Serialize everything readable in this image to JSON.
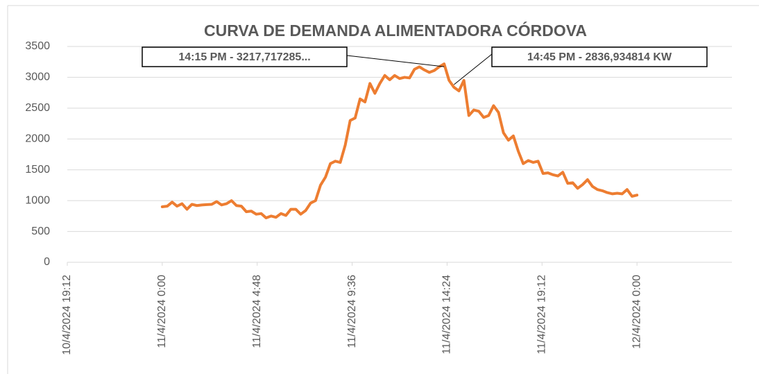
{
  "chart_data": {
    "type": "line",
    "title": "CURVA DE DEMANDA ALIMENTADORA CÓRDOVA",
    "x": [
      "11/4/2024 0:00",
      "11/4/2024 0:15",
      "11/4/2024 0:30",
      "11/4/2024 0:45",
      "11/4/2024 1:00",
      "11/4/2024 1:15",
      "11/4/2024 1:30",
      "11/4/2024 1:45",
      "11/4/2024 2:00",
      "11/4/2024 2:15",
      "11/4/2024 2:30",
      "11/4/2024 2:45",
      "11/4/2024 3:00",
      "11/4/2024 3:15",
      "11/4/2024 3:30",
      "11/4/2024 3:45",
      "11/4/2024 4:00",
      "11/4/2024 4:15",
      "11/4/2024 4:30",
      "11/4/2024 4:45",
      "11/4/2024 5:00",
      "11/4/2024 5:15",
      "11/4/2024 5:30",
      "11/4/2024 5:45",
      "11/4/2024 6:00",
      "11/4/2024 6:15",
      "11/4/2024 6:30",
      "11/4/2024 6:45",
      "11/4/2024 7:00",
      "11/4/2024 7:15",
      "11/4/2024 7:30",
      "11/4/2024 7:45",
      "11/4/2024 8:00",
      "11/4/2024 8:15",
      "11/4/2024 8:30",
      "11/4/2024 8:45",
      "11/4/2024 9:00",
      "11/4/2024 9:15",
      "11/4/2024 9:30",
      "11/4/2024 9:45",
      "11/4/2024 10:00",
      "11/4/2024 10:15",
      "11/4/2024 10:30",
      "11/4/2024 10:45",
      "11/4/2024 11:00",
      "11/4/2024 11:15",
      "11/4/2024 11:30",
      "11/4/2024 11:45",
      "11/4/2024 12:00",
      "11/4/2024 12:15",
      "11/4/2024 12:30",
      "11/4/2024 12:45",
      "11/4/2024 13:00",
      "11/4/2024 13:15",
      "11/4/2024 13:30",
      "11/4/2024 13:45",
      "11/4/2024 14:00",
      "11/4/2024 14:15",
      "11/4/2024 14:30",
      "11/4/2024 14:45",
      "11/4/2024 15:00",
      "11/4/2024 15:15",
      "11/4/2024 15:30",
      "11/4/2024 15:45",
      "11/4/2024 16:00",
      "11/4/2024 16:15",
      "11/4/2024 16:30",
      "11/4/2024 16:45",
      "11/4/2024 17:00",
      "11/4/2024 17:15",
      "11/4/2024 17:30",
      "11/4/2024 17:45",
      "11/4/2024 18:00",
      "11/4/2024 18:15",
      "11/4/2024 18:30",
      "11/4/2024 18:45",
      "11/4/2024 19:00",
      "11/4/2024 19:15",
      "11/4/2024 19:30",
      "11/4/2024 19:45",
      "11/4/2024 20:00",
      "11/4/2024 20:15",
      "11/4/2024 20:30",
      "11/4/2024 20:45",
      "11/4/2024 21:00",
      "11/4/2024 21:15",
      "11/4/2024 21:30",
      "11/4/2024 21:45",
      "11/4/2024 22:00",
      "11/4/2024 22:15",
      "11/4/2024 22:30",
      "11/4/2024 22:45",
      "11/4/2024 23:00",
      "11/4/2024 23:15",
      "11/4/2024 23:30",
      "11/4/2024 23:45",
      "12/4/2024 0:00"
    ],
    "values": [
      900,
      910,
      975,
      910,
      950,
      860,
      940,
      920,
      930,
      935,
      940,
      985,
      930,
      950,
      1000,
      920,
      910,
      820,
      830,
      780,
      790,
      720,
      750,
      730,
      790,
      760,
      860,
      860,
      780,
      840,
      960,
      1000,
      1250,
      1380,
      1600,
      1640,
      1620,
      1900,
      2300,
      2340,
      2650,
      2600,
      2900,
      2740,
      2900,
      3030,
      2960,
      3030,
      2980,
      3000,
      2990,
      3130,
      3170,
      3120,
      3080,
      3110,
      3170,
      3217.717285,
      2950,
      2836.934814,
      2780,
      2950,
      2380,
      2470,
      2450,
      2350,
      2380,
      2540,
      2430,
      2100,
      1980,
      2050,
      1800,
      1600,
      1650,
      1620,
      1640,
      1440,
      1450,
      1420,
      1400,
      1460,
      1280,
      1290,
      1200,
      1260,
      1340,
      1230,
      1180,
      1160,
      1130,
      1110,
      1120,
      1110,
      1180,
      1070,
      1090
    ],
    "value_labels": [
      null,
      null,
      null,
      null,
      null,
      null,
      null,
      null,
      null,
      null,
      null,
      null,
      null,
      null,
      null,
      null,
      null,
      null,
      null,
      null,
      null,
      null,
      null,
      null,
      null,
      null,
      null,
      null,
      null,
      null,
      null,
      null,
      null,
      null,
      null,
      null,
      null,
      null,
      null,
      null,
      null,
      null,
      null,
      null,
      null,
      null,
      null,
      null,
      null,
      null,
      null,
      null,
      null,
      null,
      null,
      null,
      null,
      "14:15 PM - 3217,717285...",
      null,
      "14:45 PM - 2836,934814 KW",
      null,
      null,
      null,
      null,
      null,
      null,
      null,
      null,
      null,
      null,
      null,
      null,
      null,
      null,
      null,
      null,
      null,
      null,
      null,
      null,
      null,
      null,
      null,
      null,
      null,
      null,
      null,
      null,
      null,
      null,
      null,
      null,
      null,
      null,
      null,
      null,
      null
    ],
    "color": "#ed7d31",
    "xlim": [
      "10/4/2024 19:12",
      "12/4/2024 4:48"
    ],
    "xticks": [
      "10/4/2024 19:12",
      "11/4/2024 0:00",
      "11/4/2024 4:48",
      "11/4/2024 9:36",
      "11/4/2024 14:24",
      "11/4/2024 19:12",
      "12/4/2024 0:00"
    ],
    "ylim": [
      0,
      3500
    ],
    "yticks": [
      0,
      500,
      1000,
      1500,
      2000,
      2500,
      3000,
      3500
    ],
    "grid": true
  }
}
